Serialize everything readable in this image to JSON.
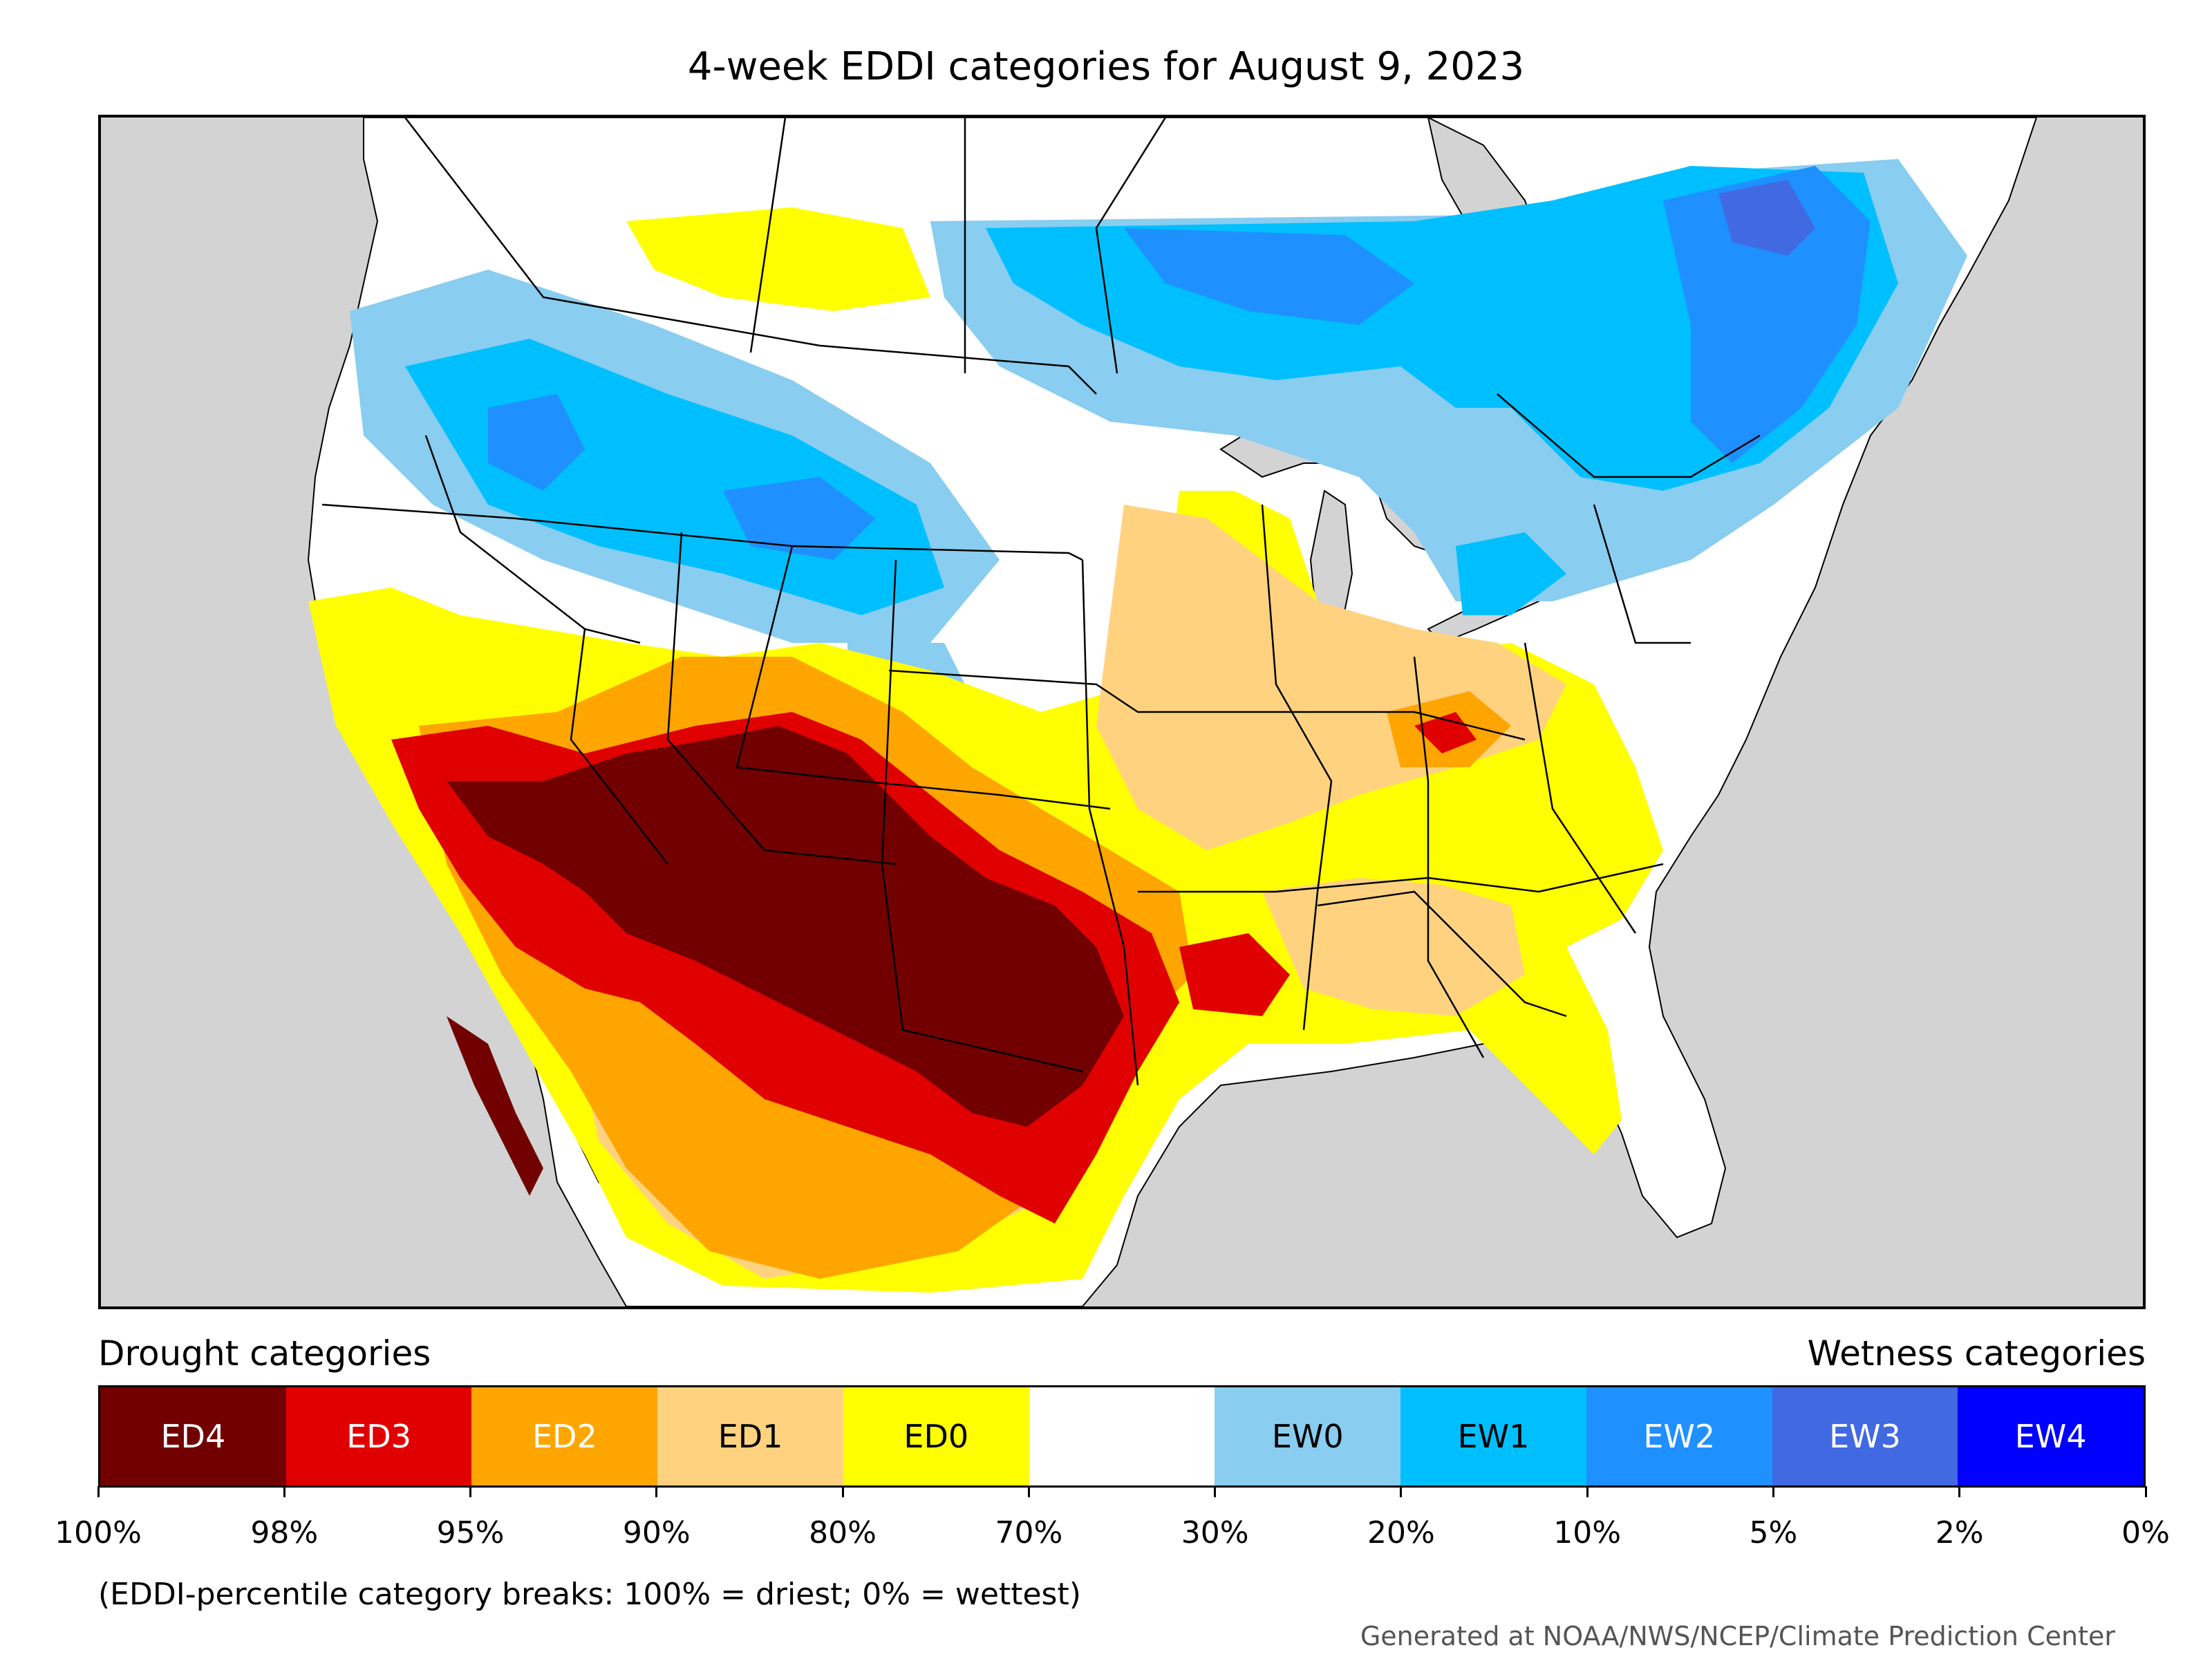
{
  "title": "4-week EDDI categories for August 9, 2023",
  "legend": {
    "drought_heading": "Drought categories",
    "wetness_heading": "Wetness categories",
    "categories": [
      {
        "label": "ED4",
        "color": "#720000",
        "text_color": "#ffffff"
      },
      {
        "label": "ED3",
        "color": "#e00000",
        "text_color": "#ffffff"
      },
      {
        "label": "ED2",
        "color": "#ffa500",
        "text_color": "#ffffff"
      },
      {
        "label": "ED1",
        "color": "#ffd27f",
        "text_color": "#000000"
      },
      {
        "label": "ED0",
        "color": "#ffff00",
        "text_color": "#000000"
      },
      {
        "label": "",
        "color": "#ffffff",
        "text_color": "#000000"
      },
      {
        "label": "EW0",
        "color": "#89cdf0",
        "text_color": "#000000"
      },
      {
        "label": "EW1",
        "color": "#00bfff",
        "text_color": "#000000"
      },
      {
        "label": "EW2",
        "color": "#1e90ff",
        "text_color": "#ffffff"
      },
      {
        "label": "EW3",
        "color": "#4169e1",
        "text_color": "#ffffff"
      },
      {
        "label": "EW4",
        "color": "#0000ff",
        "text_color": "#ffffff"
      }
    ],
    "breaks": [
      "100%",
      "98%",
      "95%",
      "90%",
      "80%",
      "70%",
      "30%",
      "20%",
      "10%",
      "5%",
      "2%",
      "0%"
    ]
  },
  "note": "(EDDI-percentile category breaks: 100% = driest; 0% = wettest)",
  "credit": "Generated at NOAA/NWS/NCEP/Climate Prediction Center",
  "map": {
    "background_color": "#d3d3d3",
    "land_color": "#ffffff",
    "water_color": "#d3d3d3"
  }
}
